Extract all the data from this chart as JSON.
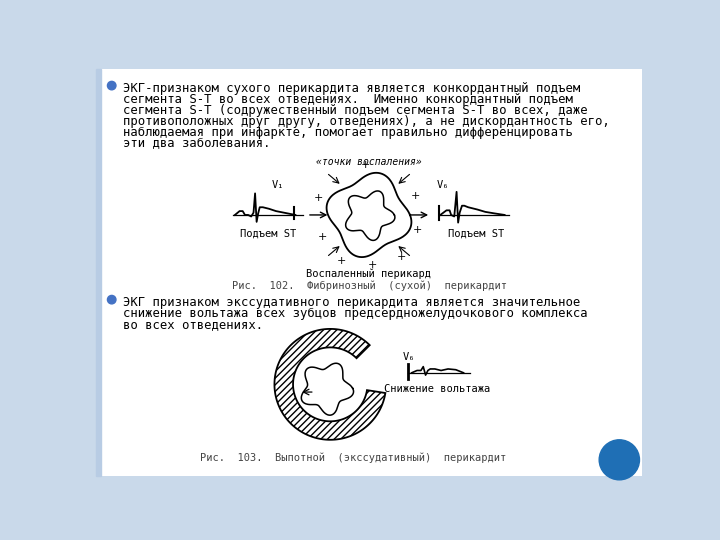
{
  "background_color": "#c9d9ea",
  "slide_bg": "#ffffff",
  "bullet_color": "#4472c4",
  "text_color": "#000000",
  "bullet1_lines": [
    "ЭКГ-признаком сухого перикардита является конкордантный подъем",
    "сегмента S-T во всех отведениях.  Именно конкордантный подъем",
    "сегмента S-T (содружественный подъем сегмента S-T во всех, даже",
    "противоположных друг другу, отведениях), а не дискордантность его,",
    "наблюдаемая при инфаркте, помогает правильно дифференцировать",
    "эти два заболевания."
  ],
  "bullet2_lines": [
    "ЭКГ признаком экссудативного перикардита является значительное",
    "снижение вольтажа всех зубцов предсердножелудочкового комплекса",
    "во всех отведениях."
  ],
  "fig1_caption": "Рис.  102.  Фибринозный  (сухой)  перикардит",
  "fig2_caption": "Рис.  103.  Выпотной  (экссудативный)  перикардит",
  "label_tochki": "«точки воспаления»",
  "label_podjem1": "Подъем ST",
  "label_podjem2": "Подъем ST",
  "label_vospalenny": "Воспаленный перикард",
  "label_snizhenie": "Снижение вольтажа",
  "label_v1": "V₁",
  "label_v6a": "V₆",
  "label_v6b": "V₆",
  "blue_circle_color": "#1f6fb5"
}
